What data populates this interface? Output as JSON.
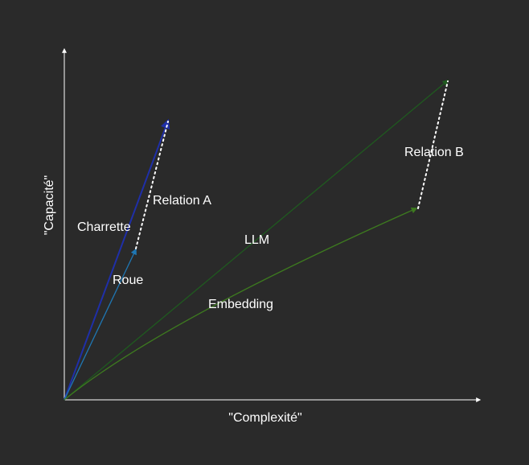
{
  "colors": {
    "background": "#2a2a2a",
    "axis": "#ffffff",
    "text": "#ffffff",
    "charrette": "#1f2fa8",
    "roue": "#1f77b4",
    "llm": "#1f5a1f",
    "embedding": "#3d7a1f",
    "relation": "#ffffff"
  },
  "axes": {
    "x_label": "\"Complexité\"",
    "y_label": "\"Capacité\""
  },
  "vectors": {
    "charrette": {
      "label": "Charrette"
    },
    "roue": {
      "label": "Roue"
    },
    "llm": {
      "label": "LLM"
    },
    "embedding": {
      "label": "Embedding"
    }
  },
  "relations": {
    "a": {
      "label": "Relation A"
    },
    "b": {
      "label": "Relation B"
    }
  }
}
